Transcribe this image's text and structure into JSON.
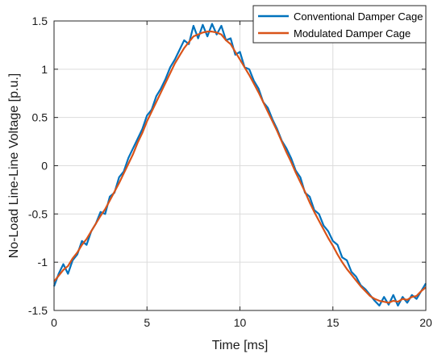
{
  "chart_data": {
    "type": "line",
    "title": "",
    "xlabel": "Time [ms]",
    "ylabel": "No-Load Line-Line Voltage [p.u.]",
    "xlim": [
      0,
      20
    ],
    "ylim": [
      -1.5,
      1.5
    ],
    "xticks": [
      "0",
      "5",
      "10",
      "15",
      "20"
    ],
    "yticks": [
      "1.5",
      "1",
      "0.5",
      "0",
      "-0.5",
      "-1",
      "-1.5"
    ],
    "grid": true,
    "legend_position": "top-right",
    "series": [
      {
        "name": "Conventional Damper Cage",
        "color": "#0072BD",
        "x": [
          0,
          0.25,
          0.5,
          0.75,
          1,
          1.25,
          1.5,
          1.75,
          2,
          2.25,
          2.5,
          2.75,
          3,
          3.25,
          3.5,
          3.75,
          4,
          4.25,
          4.5,
          4.75,
          5,
          5.25,
          5.5,
          5.75,
          6,
          6.25,
          6.5,
          6.75,
          7,
          7.25,
          7.5,
          7.75,
          8,
          8.25,
          8.5,
          8.75,
          9,
          9.25,
          9.5,
          9.75,
          10,
          10.25,
          10.5,
          10.75,
          11,
          11.25,
          11.5,
          11.75,
          12,
          12.25,
          12.5,
          12.75,
          13,
          13.25,
          13.5,
          13.75,
          14,
          14.25,
          14.5,
          14.75,
          15,
          15.25,
          15.5,
          15.75,
          16,
          16.25,
          16.5,
          16.75,
          17,
          17.25,
          17.5,
          17.75,
          18,
          18.25,
          18.5,
          18.75,
          19,
          19.25,
          19.5,
          19.75,
          20
        ],
        "values": [
          -1.25,
          -1.12,
          -1.02,
          -1.12,
          -0.98,
          -0.92,
          -0.78,
          -0.82,
          -0.68,
          -0.6,
          -0.48,
          -0.5,
          -0.32,
          -0.28,
          -0.12,
          -0.06,
          0.08,
          0.18,
          0.28,
          0.38,
          0.52,
          0.58,
          0.72,
          0.8,
          0.9,
          1.02,
          1.1,
          1.2,
          1.3,
          1.26,
          1.45,
          1.32,
          1.46,
          1.34,
          1.47,
          1.36,
          1.45,
          1.3,
          1.32,
          1.15,
          1.18,
          1.02,
          1.0,
          0.88,
          0.8,
          0.66,
          0.6,
          0.48,
          0.38,
          0.26,
          0.18,
          0.08,
          -0.05,
          -0.12,
          -0.28,
          -0.32,
          -0.46,
          -0.5,
          -0.62,
          -0.68,
          -0.78,
          -0.82,
          -0.95,
          -0.98,
          -1.1,
          -1.15,
          -1.24,
          -1.28,
          -1.34,
          -1.4,
          -1.45,
          -1.36,
          -1.44,
          -1.34,
          -1.45,
          -1.36,
          -1.42,
          -1.34,
          -1.38,
          -1.3,
          -1.22
        ]
      },
      {
        "name": "Modulated Damper Cage",
        "color": "#D95319",
        "x": [
          0,
          0.25,
          0.5,
          0.75,
          1,
          1.25,
          1.5,
          1.75,
          2,
          2.25,
          2.5,
          2.75,
          3,
          3.25,
          3.5,
          3.75,
          4,
          4.25,
          4.5,
          4.75,
          5,
          5.25,
          5.5,
          5.75,
          6,
          6.25,
          6.5,
          6.75,
          7,
          7.25,
          7.5,
          7.75,
          8,
          8.25,
          8.5,
          8.75,
          9,
          9.25,
          9.5,
          9.75,
          10,
          10.25,
          10.5,
          10.75,
          11,
          11.25,
          11.5,
          11.75,
          12,
          12.25,
          12.5,
          12.75,
          13,
          13.25,
          13.5,
          13.75,
          14,
          14.25,
          14.5,
          14.75,
          15,
          15.25,
          15.5,
          15.75,
          16,
          16.25,
          16.5,
          16.75,
          17,
          17.25,
          17.5,
          17.75,
          18,
          18.25,
          18.5,
          18.75,
          19,
          19.25,
          19.5,
          19.75,
          20
        ],
        "values": [
          -1.2,
          -1.14,
          -1.08,
          -1.04,
          -0.96,
          -0.9,
          -0.82,
          -0.76,
          -0.68,
          -0.6,
          -0.52,
          -0.45,
          -0.36,
          -0.27,
          -0.18,
          -0.08,
          0.02,
          0.12,
          0.24,
          0.34,
          0.46,
          0.56,
          0.66,
          0.76,
          0.86,
          0.96,
          1.06,
          1.14,
          1.22,
          1.28,
          1.34,
          1.36,
          1.38,
          1.39,
          1.39,
          1.38,
          1.36,
          1.3,
          1.26,
          1.18,
          1.1,
          1.02,
          0.94,
          0.85,
          0.76,
          0.66,
          0.56,
          0.46,
          0.36,
          0.25,
          0.14,
          0.04,
          -0.07,
          -0.17,
          -0.27,
          -0.38,
          -0.48,
          -0.57,
          -0.66,
          -0.75,
          -0.83,
          -0.92,
          -1.0,
          -1.07,
          -1.13,
          -1.19,
          -1.25,
          -1.3,
          -1.35,
          -1.38,
          -1.4,
          -1.41,
          -1.42,
          -1.4,
          -1.41,
          -1.38,
          -1.39,
          -1.36,
          -1.35,
          -1.3,
          -1.26
        ]
      }
    ]
  }
}
